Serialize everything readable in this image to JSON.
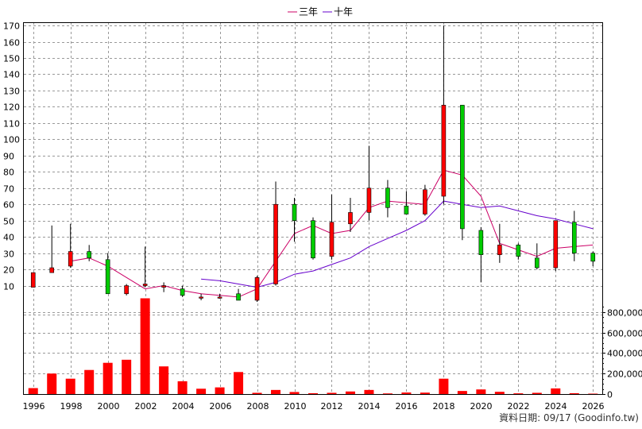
{
  "legend": [
    {
      "label": "三年",
      "color": "#cc0066"
    },
    {
      "label": "十年",
      "color": "#6600cc"
    }
  ],
  "footer": "資料日期: 09/17  (Goodinfo.tw)",
  "colors": {
    "up": "#ff0000",
    "down": "#00cc00",
    "wick": "#000000",
    "volume": "#ff0000"
  },
  "chart_data": [
    {
      "type": "candlestick",
      "title": "",
      "ylim": [
        0,
        172
      ],
      "yticks": [
        10,
        20,
        30,
        40,
        50,
        60,
        70,
        80,
        90,
        100,
        110,
        120,
        130,
        140,
        150,
        160,
        170
      ],
      "xlim": [
        1995.5,
        2026.5
      ],
      "xticks": [
        1996,
        1998,
        2000,
        2002,
        2004,
        2006,
        2008,
        2010,
        2012,
        2014,
        2016,
        2018,
        2020,
        2022,
        2024,
        2026
      ],
      "grid": true,
      "candles": [
        {
          "year": 1996,
          "open": 9,
          "close": 18,
          "high": 18,
          "low": 9
        },
        {
          "year": 1997,
          "open": 18,
          "close": 21,
          "high": 47,
          "low": 18
        },
        {
          "year": 1998,
          "open": 22,
          "close": 31,
          "high": 48,
          "low": 21
        },
        {
          "year": 1999,
          "open": 31,
          "close": 27,
          "high": 35,
          "low": 25
        },
        {
          "year": 2000,
          "open": 26,
          "close": 5,
          "high": 30,
          "low": 5
        },
        {
          "year": 2001,
          "open": 5,
          "close": 10,
          "high": 11,
          "low": 4
        },
        {
          "year": 2002,
          "open": 10,
          "close": 11,
          "high": 34,
          "low": 9
        },
        {
          "year": 2003,
          "open": 9,
          "close": 10,
          "high": 12,
          "low": 6
        },
        {
          "year": 2004,
          "open": 8,
          "close": 4,
          "high": 10,
          "low": 3
        },
        {
          "year": 2005,
          "open": 3,
          "close": 3,
          "high": 5,
          "low": 1
        },
        {
          "year": 2006,
          "open": 3,
          "close": 3,
          "high": 5,
          "low": 2
        },
        {
          "year": 2007,
          "open": 5,
          "close": 1,
          "high": 8,
          "low": 1
        },
        {
          "year": 2008,
          "open": 1,
          "close": 15,
          "high": 16,
          "low": 0
        },
        {
          "year": 2009,
          "open": 11,
          "close": 60,
          "high": 74,
          "low": 10
        },
        {
          "year": 2010,
          "open": 60,
          "close": 50,
          "high": 64,
          "low": 37
        },
        {
          "year": 2011,
          "open": 50,
          "close": 27,
          "high": 52,
          "low": 26
        },
        {
          "year": 2012,
          "open": 28,
          "close": 49,
          "high": 66,
          "low": 26
        },
        {
          "year": 2013,
          "open": 48,
          "close": 55,
          "high": 64,
          "low": 43
        },
        {
          "year": 2014,
          "open": 55,
          "close": 70,
          "high": 96,
          "low": 50
        },
        {
          "year": 2015,
          "open": 70,
          "close": 58,
          "high": 75,
          "low": 52
        },
        {
          "year": 2016,
          "open": 59,
          "close": 54,
          "high": 68,
          "low": 54
        },
        {
          "year": 2017,
          "open": 54,
          "close": 69,
          "high": 72,
          "low": 53
        },
        {
          "year": 2018,
          "open": 65,
          "close": 121,
          "high": 170,
          "low": 60
        },
        {
          "year": 2019,
          "open": 121,
          "close": 45,
          "high": 121,
          "low": 38
        },
        {
          "year": 2020,
          "open": 44,
          "close": 29,
          "high": 46,
          "low": 12
        },
        {
          "year": 2021,
          "open": 29,
          "close": 35,
          "high": 48,
          "low": 24
        },
        {
          "year": 2022,
          "open": 35,
          "close": 28,
          "high": 36,
          "low": 26
        },
        {
          "year": 2023,
          "open": 27,
          "close": 21,
          "high": 36,
          "low": 20
        },
        {
          "year": 2024,
          "open": 21,
          "close": 50,
          "high": 50,
          "low": 19
        },
        {
          "year": 2025,
          "open": 49,
          "close": 30,
          "high": 56,
          "low": 25
        },
        {
          "year": 2026,
          "open": 30,
          "close": 25,
          "high": 31,
          "low": 22
        }
      ],
      "series": [
        {
          "name": "三年",
          "color": "#cc0066",
          "points": [
            [
              1998,
              25
            ],
            [
              1999,
              27
            ],
            [
              2000,
              22
            ],
            [
              2001,
              15
            ],
            [
              2002,
              8
            ],
            [
              2003,
              10
            ],
            [
              2004,
              7
            ],
            [
              2005,
              5
            ],
            [
              2006,
              4
            ],
            [
              2007,
              3
            ],
            [
              2008,
              8
            ],
            [
              2009,
              25
            ],
            [
              2010,
              42
            ],
            [
              2011,
              47
            ],
            [
              2012,
              42
            ],
            [
              2013,
              44
            ],
            [
              2014,
              58
            ],
            [
              2015,
              62
            ],
            [
              2016,
              61
            ],
            [
              2017,
              60
            ],
            [
              2018,
              81
            ],
            [
              2019,
              78
            ],
            [
              2020,
              65
            ],
            [
              2021,
              36
            ],
            [
              2022,
              32
            ],
            [
              2023,
              28
            ],
            [
              2024,
              33
            ],
            [
              2025,
              34
            ],
            [
              2026,
              35
            ]
          ]
        },
        {
          "name": "十年",
          "color": "#6600cc",
          "points": [
            [
              2005,
              14
            ],
            [
              2006,
              13
            ],
            [
              2007,
              11
            ],
            [
              2008,
              9
            ],
            [
              2009,
              12
            ],
            [
              2010,
              17
            ],
            [
              2011,
              19
            ],
            [
              2012,
              23
            ],
            [
              2013,
              27
            ],
            [
              2014,
              34
            ],
            [
              2015,
              39
            ],
            [
              2016,
              44
            ],
            [
              2017,
              50
            ],
            [
              2018,
              62
            ],
            [
              2019,
              60
            ],
            [
              2020,
              58
            ],
            [
              2021,
              59
            ],
            [
              2022,
              56
            ],
            [
              2023,
              53
            ],
            [
              2024,
              51
            ],
            [
              2025,
              48
            ],
            [
              2026,
              45
            ]
          ]
        }
      ]
    },
    {
      "type": "bar",
      "title": "",
      "ylim": [
        0,
        900000
      ],
      "yticks": [
        0,
        200000,
        400000,
        600000,
        800000
      ],
      "ytick_labels": [
        "0",
        "200,000",
        "400,000",
        "600,000",
        "800,000"
      ],
      "categories": [
        1996,
        1997,
        1998,
        1999,
        2000,
        2001,
        2002,
        2003,
        2004,
        2005,
        2006,
        2007,
        2008,
        2009,
        2010,
        2011,
        2012,
        2013,
        2014,
        2015,
        2016,
        2017,
        2018,
        2019,
        2020,
        2021,
        2022,
        2023,
        2024,
        2025,
        2026
      ],
      "values": [
        58000,
        200000,
        150000,
        235000,
        305000,
        335000,
        935000,
        270000,
        125000,
        52000,
        65000,
        215000,
        12000,
        40000,
        20000,
        8000,
        12000,
        25000,
        40000,
        6000,
        15000,
        14000,
        150000,
        30000,
        45000,
        22000,
        7000,
        12000,
        55000,
        8000,
        4000
      ]
    }
  ]
}
